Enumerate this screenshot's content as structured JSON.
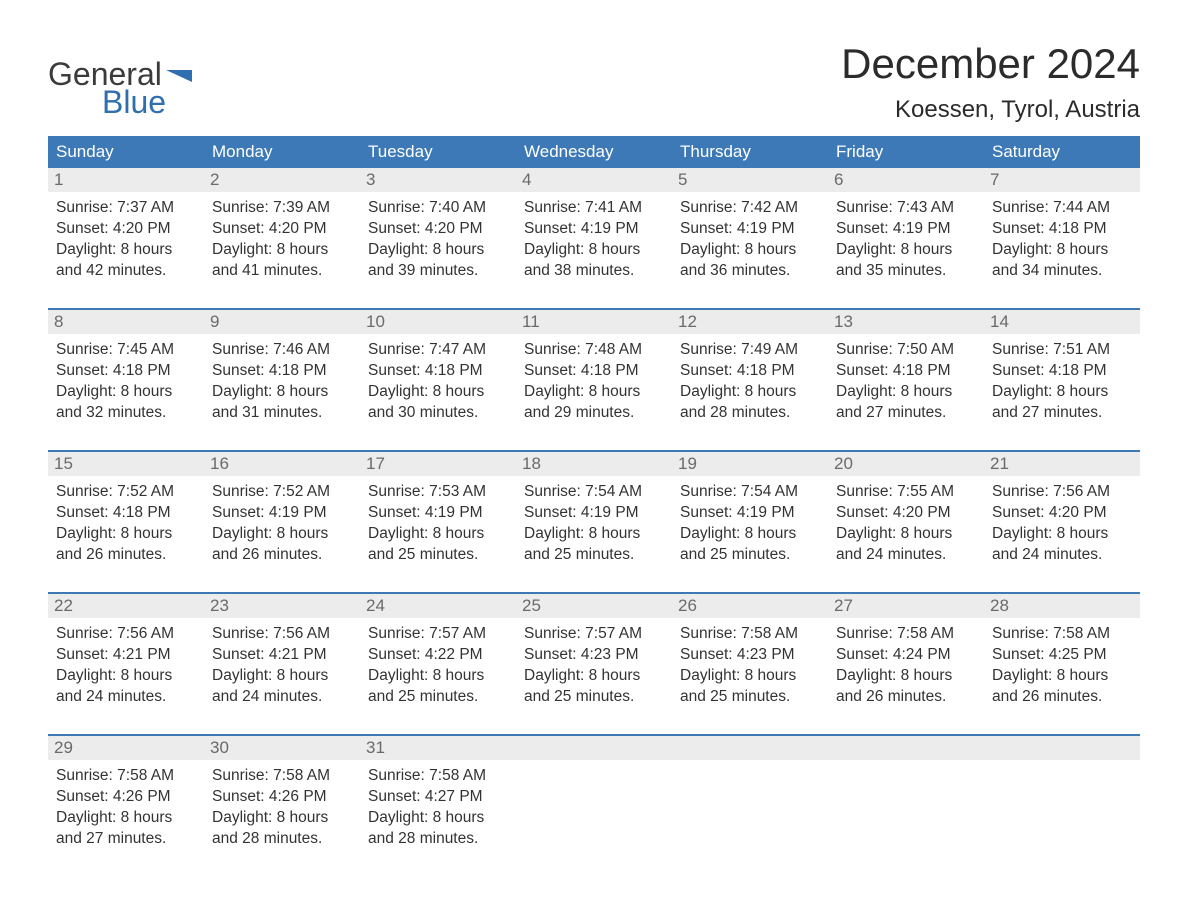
{
  "brand": {
    "general": "General",
    "blue": "Blue"
  },
  "title": "December 2024",
  "location": "Koessen, Tyrol, Austria",
  "colors": {
    "header_bg": "#3d79b6",
    "header_text": "#ffffff",
    "daynum_bg": "#ececec",
    "daynum_text": "#6a6a6a",
    "body_text": "#333333",
    "accent": "#2f6fb0",
    "week_border": "#3d79b6",
    "background": "#ffffff"
  },
  "layout": {
    "columns": 7,
    "rows": 5,
    "title_fontsize": 42,
    "location_fontsize": 24,
    "weekday_fontsize": 17,
    "daynum_fontsize": 17,
    "cell_fontsize": 15.5
  },
  "weekdays": [
    "Sunday",
    "Monday",
    "Tuesday",
    "Wednesday",
    "Thursday",
    "Friday",
    "Saturday"
  ],
  "weeks": [
    [
      {
        "day": "1",
        "sunrise": "Sunrise: 7:37 AM",
        "sunset": "Sunset: 4:20 PM",
        "dl1": "Daylight: 8 hours",
        "dl2": "and 42 minutes."
      },
      {
        "day": "2",
        "sunrise": "Sunrise: 7:39 AM",
        "sunset": "Sunset: 4:20 PM",
        "dl1": "Daylight: 8 hours",
        "dl2": "and 41 minutes."
      },
      {
        "day": "3",
        "sunrise": "Sunrise: 7:40 AM",
        "sunset": "Sunset: 4:20 PM",
        "dl1": "Daylight: 8 hours",
        "dl2": "and 39 minutes."
      },
      {
        "day": "4",
        "sunrise": "Sunrise: 7:41 AM",
        "sunset": "Sunset: 4:19 PM",
        "dl1": "Daylight: 8 hours",
        "dl2": "and 38 minutes."
      },
      {
        "day": "5",
        "sunrise": "Sunrise: 7:42 AM",
        "sunset": "Sunset: 4:19 PM",
        "dl1": "Daylight: 8 hours",
        "dl2": "and 36 minutes."
      },
      {
        "day": "6",
        "sunrise": "Sunrise: 7:43 AM",
        "sunset": "Sunset: 4:19 PM",
        "dl1": "Daylight: 8 hours",
        "dl2": "and 35 minutes."
      },
      {
        "day": "7",
        "sunrise": "Sunrise: 7:44 AM",
        "sunset": "Sunset: 4:18 PM",
        "dl1": "Daylight: 8 hours",
        "dl2": "and 34 minutes."
      }
    ],
    [
      {
        "day": "8",
        "sunrise": "Sunrise: 7:45 AM",
        "sunset": "Sunset: 4:18 PM",
        "dl1": "Daylight: 8 hours",
        "dl2": "and 32 minutes."
      },
      {
        "day": "9",
        "sunrise": "Sunrise: 7:46 AM",
        "sunset": "Sunset: 4:18 PM",
        "dl1": "Daylight: 8 hours",
        "dl2": "and 31 minutes."
      },
      {
        "day": "10",
        "sunrise": "Sunrise: 7:47 AM",
        "sunset": "Sunset: 4:18 PM",
        "dl1": "Daylight: 8 hours",
        "dl2": "and 30 minutes."
      },
      {
        "day": "11",
        "sunrise": "Sunrise: 7:48 AM",
        "sunset": "Sunset: 4:18 PM",
        "dl1": "Daylight: 8 hours",
        "dl2": "and 29 minutes."
      },
      {
        "day": "12",
        "sunrise": "Sunrise: 7:49 AM",
        "sunset": "Sunset: 4:18 PM",
        "dl1": "Daylight: 8 hours",
        "dl2": "and 28 minutes."
      },
      {
        "day": "13",
        "sunrise": "Sunrise: 7:50 AM",
        "sunset": "Sunset: 4:18 PM",
        "dl1": "Daylight: 8 hours",
        "dl2": "and 27 minutes."
      },
      {
        "day": "14",
        "sunrise": "Sunrise: 7:51 AM",
        "sunset": "Sunset: 4:18 PM",
        "dl1": "Daylight: 8 hours",
        "dl2": "and 27 minutes."
      }
    ],
    [
      {
        "day": "15",
        "sunrise": "Sunrise: 7:52 AM",
        "sunset": "Sunset: 4:18 PM",
        "dl1": "Daylight: 8 hours",
        "dl2": "and 26 minutes."
      },
      {
        "day": "16",
        "sunrise": "Sunrise: 7:52 AM",
        "sunset": "Sunset: 4:19 PM",
        "dl1": "Daylight: 8 hours",
        "dl2": "and 26 minutes."
      },
      {
        "day": "17",
        "sunrise": "Sunrise: 7:53 AM",
        "sunset": "Sunset: 4:19 PM",
        "dl1": "Daylight: 8 hours",
        "dl2": "and 25 minutes."
      },
      {
        "day": "18",
        "sunrise": "Sunrise: 7:54 AM",
        "sunset": "Sunset: 4:19 PM",
        "dl1": "Daylight: 8 hours",
        "dl2": "and 25 minutes."
      },
      {
        "day": "19",
        "sunrise": "Sunrise: 7:54 AM",
        "sunset": "Sunset: 4:19 PM",
        "dl1": "Daylight: 8 hours",
        "dl2": "and 25 minutes."
      },
      {
        "day": "20",
        "sunrise": "Sunrise: 7:55 AM",
        "sunset": "Sunset: 4:20 PM",
        "dl1": "Daylight: 8 hours",
        "dl2": "and 24 minutes."
      },
      {
        "day": "21",
        "sunrise": "Sunrise: 7:56 AM",
        "sunset": "Sunset: 4:20 PM",
        "dl1": "Daylight: 8 hours",
        "dl2": "and 24 minutes."
      }
    ],
    [
      {
        "day": "22",
        "sunrise": "Sunrise: 7:56 AM",
        "sunset": "Sunset: 4:21 PM",
        "dl1": "Daylight: 8 hours",
        "dl2": "and 24 minutes."
      },
      {
        "day": "23",
        "sunrise": "Sunrise: 7:56 AM",
        "sunset": "Sunset: 4:21 PM",
        "dl1": "Daylight: 8 hours",
        "dl2": "and 24 minutes."
      },
      {
        "day": "24",
        "sunrise": "Sunrise: 7:57 AM",
        "sunset": "Sunset: 4:22 PM",
        "dl1": "Daylight: 8 hours",
        "dl2": "and 25 minutes."
      },
      {
        "day": "25",
        "sunrise": "Sunrise: 7:57 AM",
        "sunset": "Sunset: 4:23 PM",
        "dl1": "Daylight: 8 hours",
        "dl2": "and 25 minutes."
      },
      {
        "day": "26",
        "sunrise": "Sunrise: 7:58 AM",
        "sunset": "Sunset: 4:23 PM",
        "dl1": "Daylight: 8 hours",
        "dl2": "and 25 minutes."
      },
      {
        "day": "27",
        "sunrise": "Sunrise: 7:58 AM",
        "sunset": "Sunset: 4:24 PM",
        "dl1": "Daylight: 8 hours",
        "dl2": "and 26 minutes."
      },
      {
        "day": "28",
        "sunrise": "Sunrise: 7:58 AM",
        "sunset": "Sunset: 4:25 PM",
        "dl1": "Daylight: 8 hours",
        "dl2": "and 26 minutes."
      }
    ],
    [
      {
        "day": "29",
        "sunrise": "Sunrise: 7:58 AM",
        "sunset": "Sunset: 4:26 PM",
        "dl1": "Daylight: 8 hours",
        "dl2": "and 27 minutes."
      },
      {
        "day": "30",
        "sunrise": "Sunrise: 7:58 AM",
        "sunset": "Sunset: 4:26 PM",
        "dl1": "Daylight: 8 hours",
        "dl2": "and 28 minutes."
      },
      {
        "day": "31",
        "sunrise": "Sunrise: 7:58 AM",
        "sunset": "Sunset: 4:27 PM",
        "dl1": "Daylight: 8 hours",
        "dl2": "and 28 minutes."
      },
      {
        "day": "",
        "sunrise": "",
        "sunset": "",
        "dl1": "",
        "dl2": ""
      },
      {
        "day": "",
        "sunrise": "",
        "sunset": "",
        "dl1": "",
        "dl2": ""
      },
      {
        "day": "",
        "sunrise": "",
        "sunset": "",
        "dl1": "",
        "dl2": ""
      },
      {
        "day": "",
        "sunrise": "",
        "sunset": "",
        "dl1": "",
        "dl2": ""
      }
    ]
  ]
}
